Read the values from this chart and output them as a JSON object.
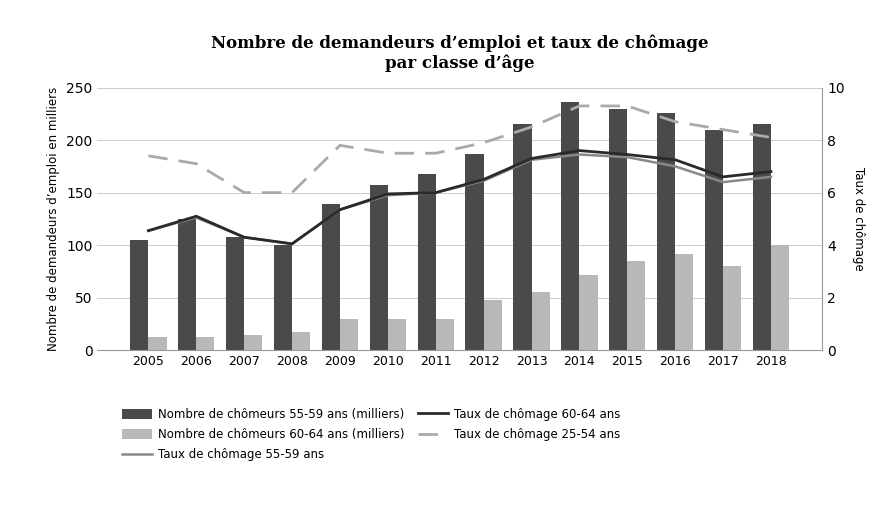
{
  "years": [
    2005,
    2006,
    2007,
    2008,
    2009,
    2010,
    2011,
    2012,
    2013,
    2014,
    2015,
    2016,
    2017,
    2018
  ],
  "chomeurs_55_59": [
    105,
    125,
    108,
    100,
    139,
    157,
    168,
    187,
    215,
    236,
    230,
    226,
    210,
    215
  ],
  "chomeurs_60_64": [
    13,
    13,
    14,
    17,
    30,
    30,
    30,
    48,
    55,
    72,
    85,
    92,
    80,
    100
  ],
  "taux_55_59": [
    4.55,
    5.05,
    4.3,
    4.05,
    5.35,
    5.9,
    6.0,
    6.45,
    7.25,
    7.45,
    7.35,
    7.0,
    6.4,
    6.6
  ],
  "taux_60_64": [
    4.55,
    5.1,
    4.3,
    4.05,
    5.35,
    5.95,
    6.0,
    6.5,
    7.3,
    7.6,
    7.45,
    7.25,
    6.6,
    6.8
  ],
  "taux_25_54": [
    7.4,
    7.1,
    6.0,
    6.0,
    7.8,
    7.5,
    7.5,
    7.9,
    8.5,
    9.3,
    9.3,
    8.7,
    8.4,
    8.1
  ],
  "title_line1": "Nombre de demandeurs d’emploi et taux de chômage",
  "title_line2": "par classe d’âge",
  "ylabel_left": "Nombre de demandeurs d’emploi en milliers",
  "ylabel_right": "Taux de chômage",
  "ylim_left": [
    0,
    250
  ],
  "ylim_right": [
    0,
    10
  ],
  "yticks_left": [
    0,
    50,
    100,
    150,
    200,
    250
  ],
  "yticks_right": [
    0,
    2,
    4,
    6,
    8,
    10
  ],
  "bar_color_55_59": "#4a4a4a",
  "bar_color_60_64": "#b8b8b8",
  "line_color_55_59": "#888888",
  "line_color_60_64": "#2a2a2a",
  "line_color_25_54": "#aaaaaa",
  "legend_labels": [
    "Nombre de chômeurs 55-59 ans (milliers)",
    "Nombre de chômeurs 60-64 ans (milliers)",
    "Taux de chômage 55-59 ans",
    "Taux de chômage 60-64 ans",
    "Taux de chômage 25-54 ans"
  ]
}
